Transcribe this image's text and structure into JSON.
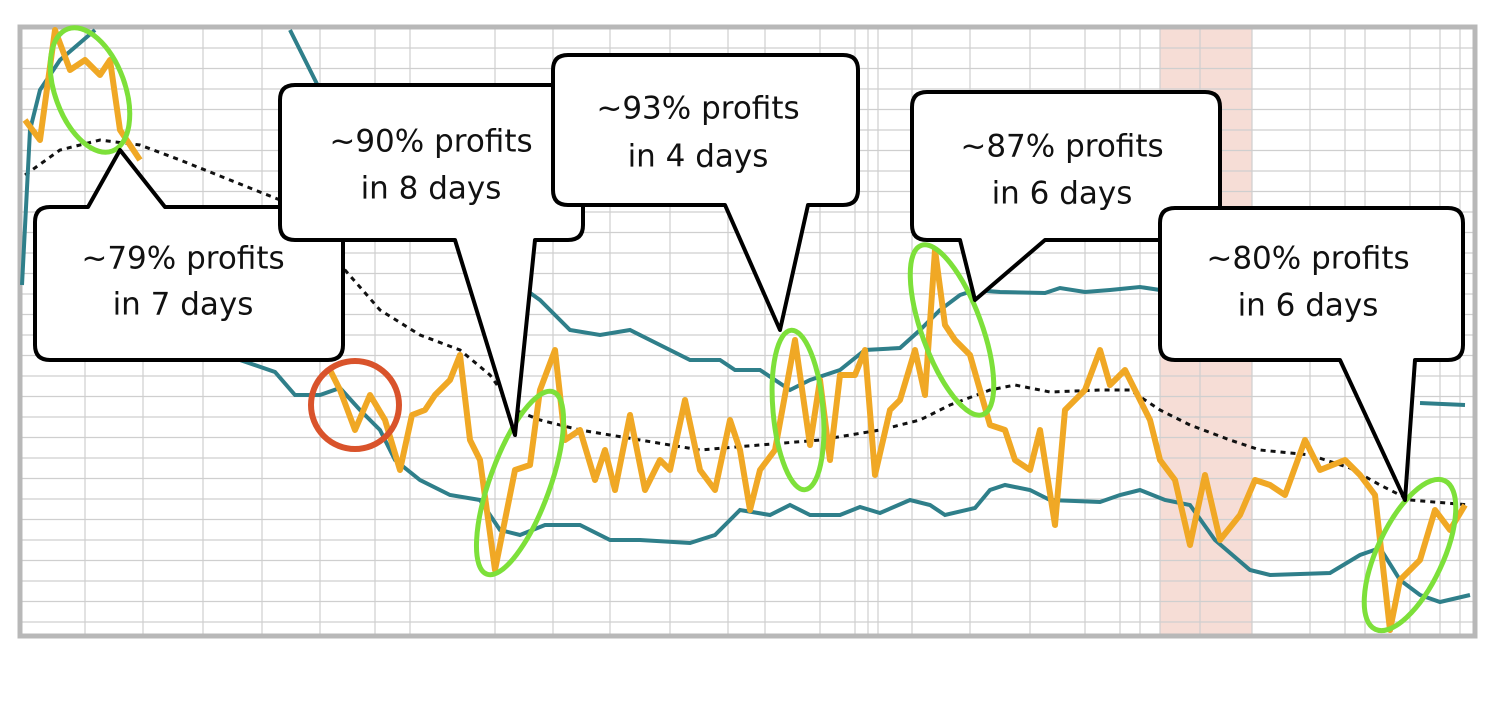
{
  "callouts": [
    {
      "lines": [
        "~79% profits",
        "in 7 days"
      ]
    },
    {
      "lines": [
        "~90% profits",
        "in 8 days"
      ]
    },
    {
      "lines": [
        "~93% profits",
        "in 4 days"
      ]
    },
    {
      "lines": [
        "~87% profits",
        "in 6 days"
      ]
    },
    {
      "lines": [
        "~80% profits",
        "in 6 days"
      ]
    }
  ]
}
